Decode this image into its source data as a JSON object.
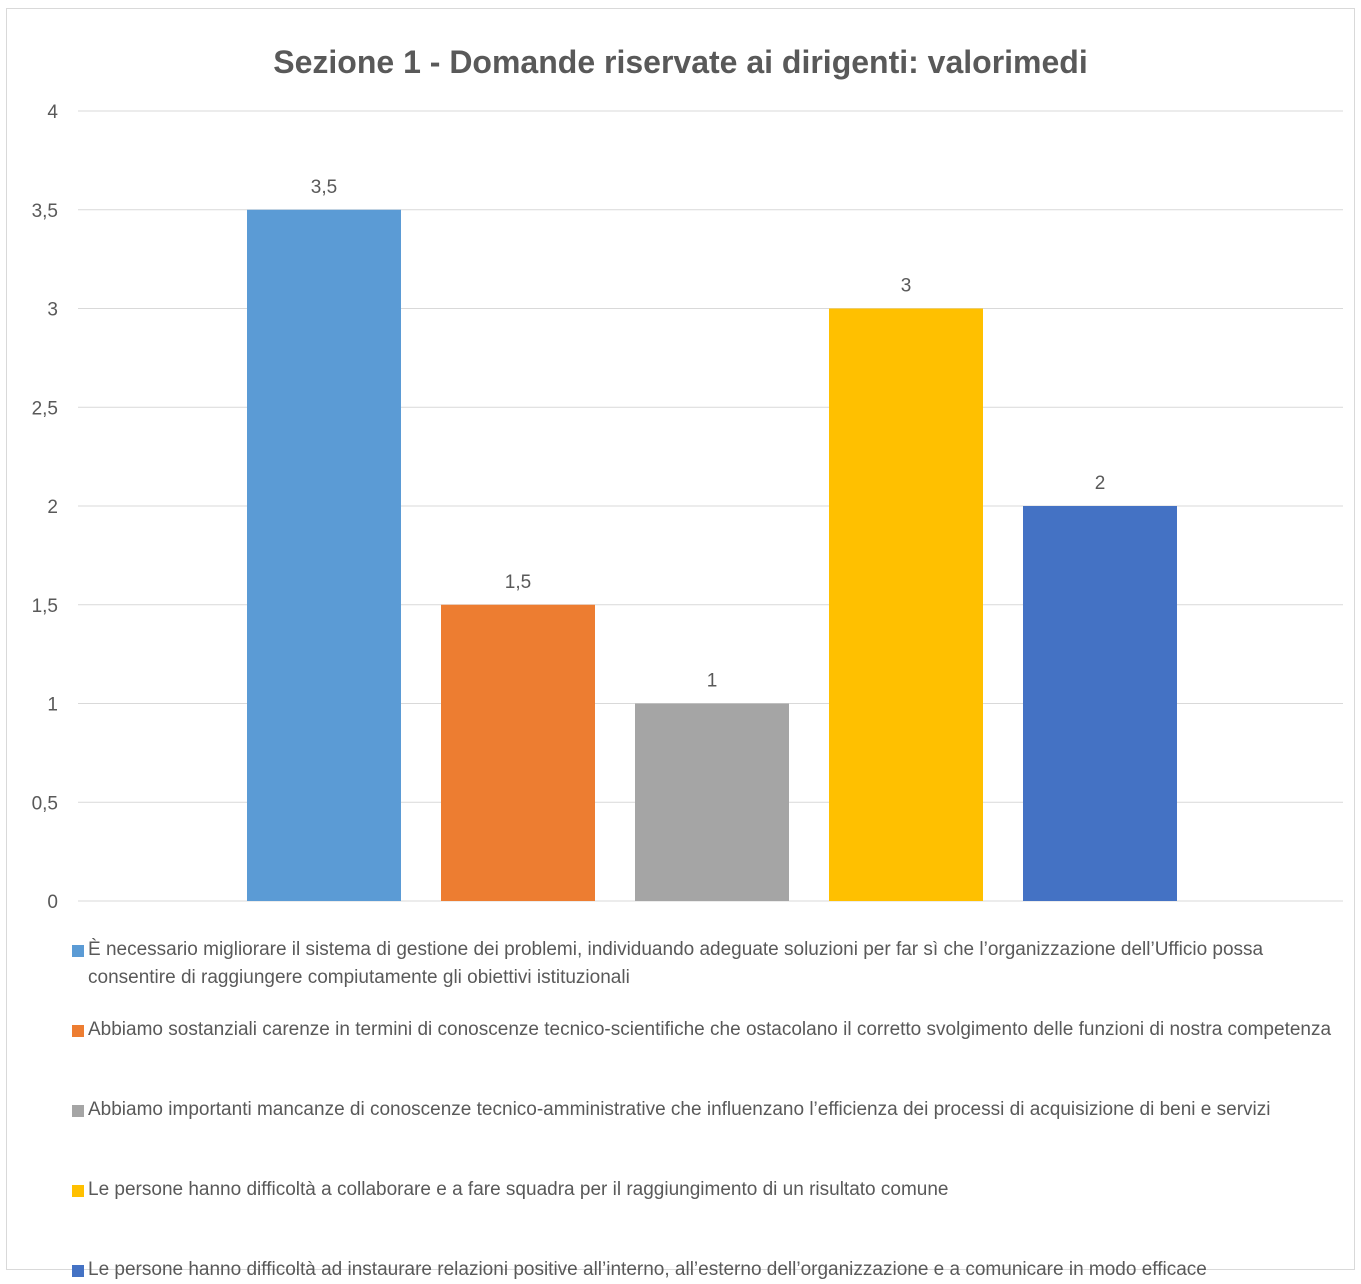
{
  "title": "Sezione 1 - Domande riservate ai dirigenti: valorimedi",
  "colors": {
    "series": [
      "#5b9bd5",
      "#ed7d31",
      "#a5a5a5",
      "#ffc000",
      "#4472c4"
    ],
    "grid": "#d9d9d9",
    "text": "#595959"
  },
  "chart_data": {
    "type": "bar",
    "title": "Sezione 1 - Domande riservate ai dirigenti: valorimedi",
    "xlabel": "",
    "ylabel": "",
    "ylim": [
      0,
      4
    ],
    "yticks": [
      "0",
      "0,5",
      "1",
      "1,5",
      "2",
      "2,5",
      "3",
      "3,5",
      "4"
    ],
    "grid": true,
    "legend_position": "bottom",
    "series": [
      {
        "name": "È necessario migliorare il sistema di gestione dei problemi, individuando adeguate soluzioni per far sì che l’organizzazione dell’Ufficio possa consentire di raggiungere compiutamente gli obiettivi istituzionali",
        "value": 3.5,
        "label": "3,5"
      },
      {
        "name": "Abbiamo sostanziali carenze in termini di conoscenze tecnico-scientifiche che ostacolano il corretto svolgimento delle funzioni di nostra competenza",
        "value": 1.5,
        "label": "1,5"
      },
      {
        "name": "Abbiamo importanti mancanze di conoscenze tecnico-amministrative che influenzano l’efficienza dei processi di acquisizione di beni e servizi",
        "value": 1,
        "label": "1"
      },
      {
        "name": "Le persone hanno difficoltà a collaborare e a fare squadra per il raggiungimento di un risultato comune",
        "value": 3,
        "label": "3"
      },
      {
        "name": "Le persone hanno difficoltà ad instaurare relazioni positive all’interno, all’esterno dell’organizzazione e a comunicare in modo efficace",
        "value": 2,
        "label": "2"
      }
    ]
  }
}
